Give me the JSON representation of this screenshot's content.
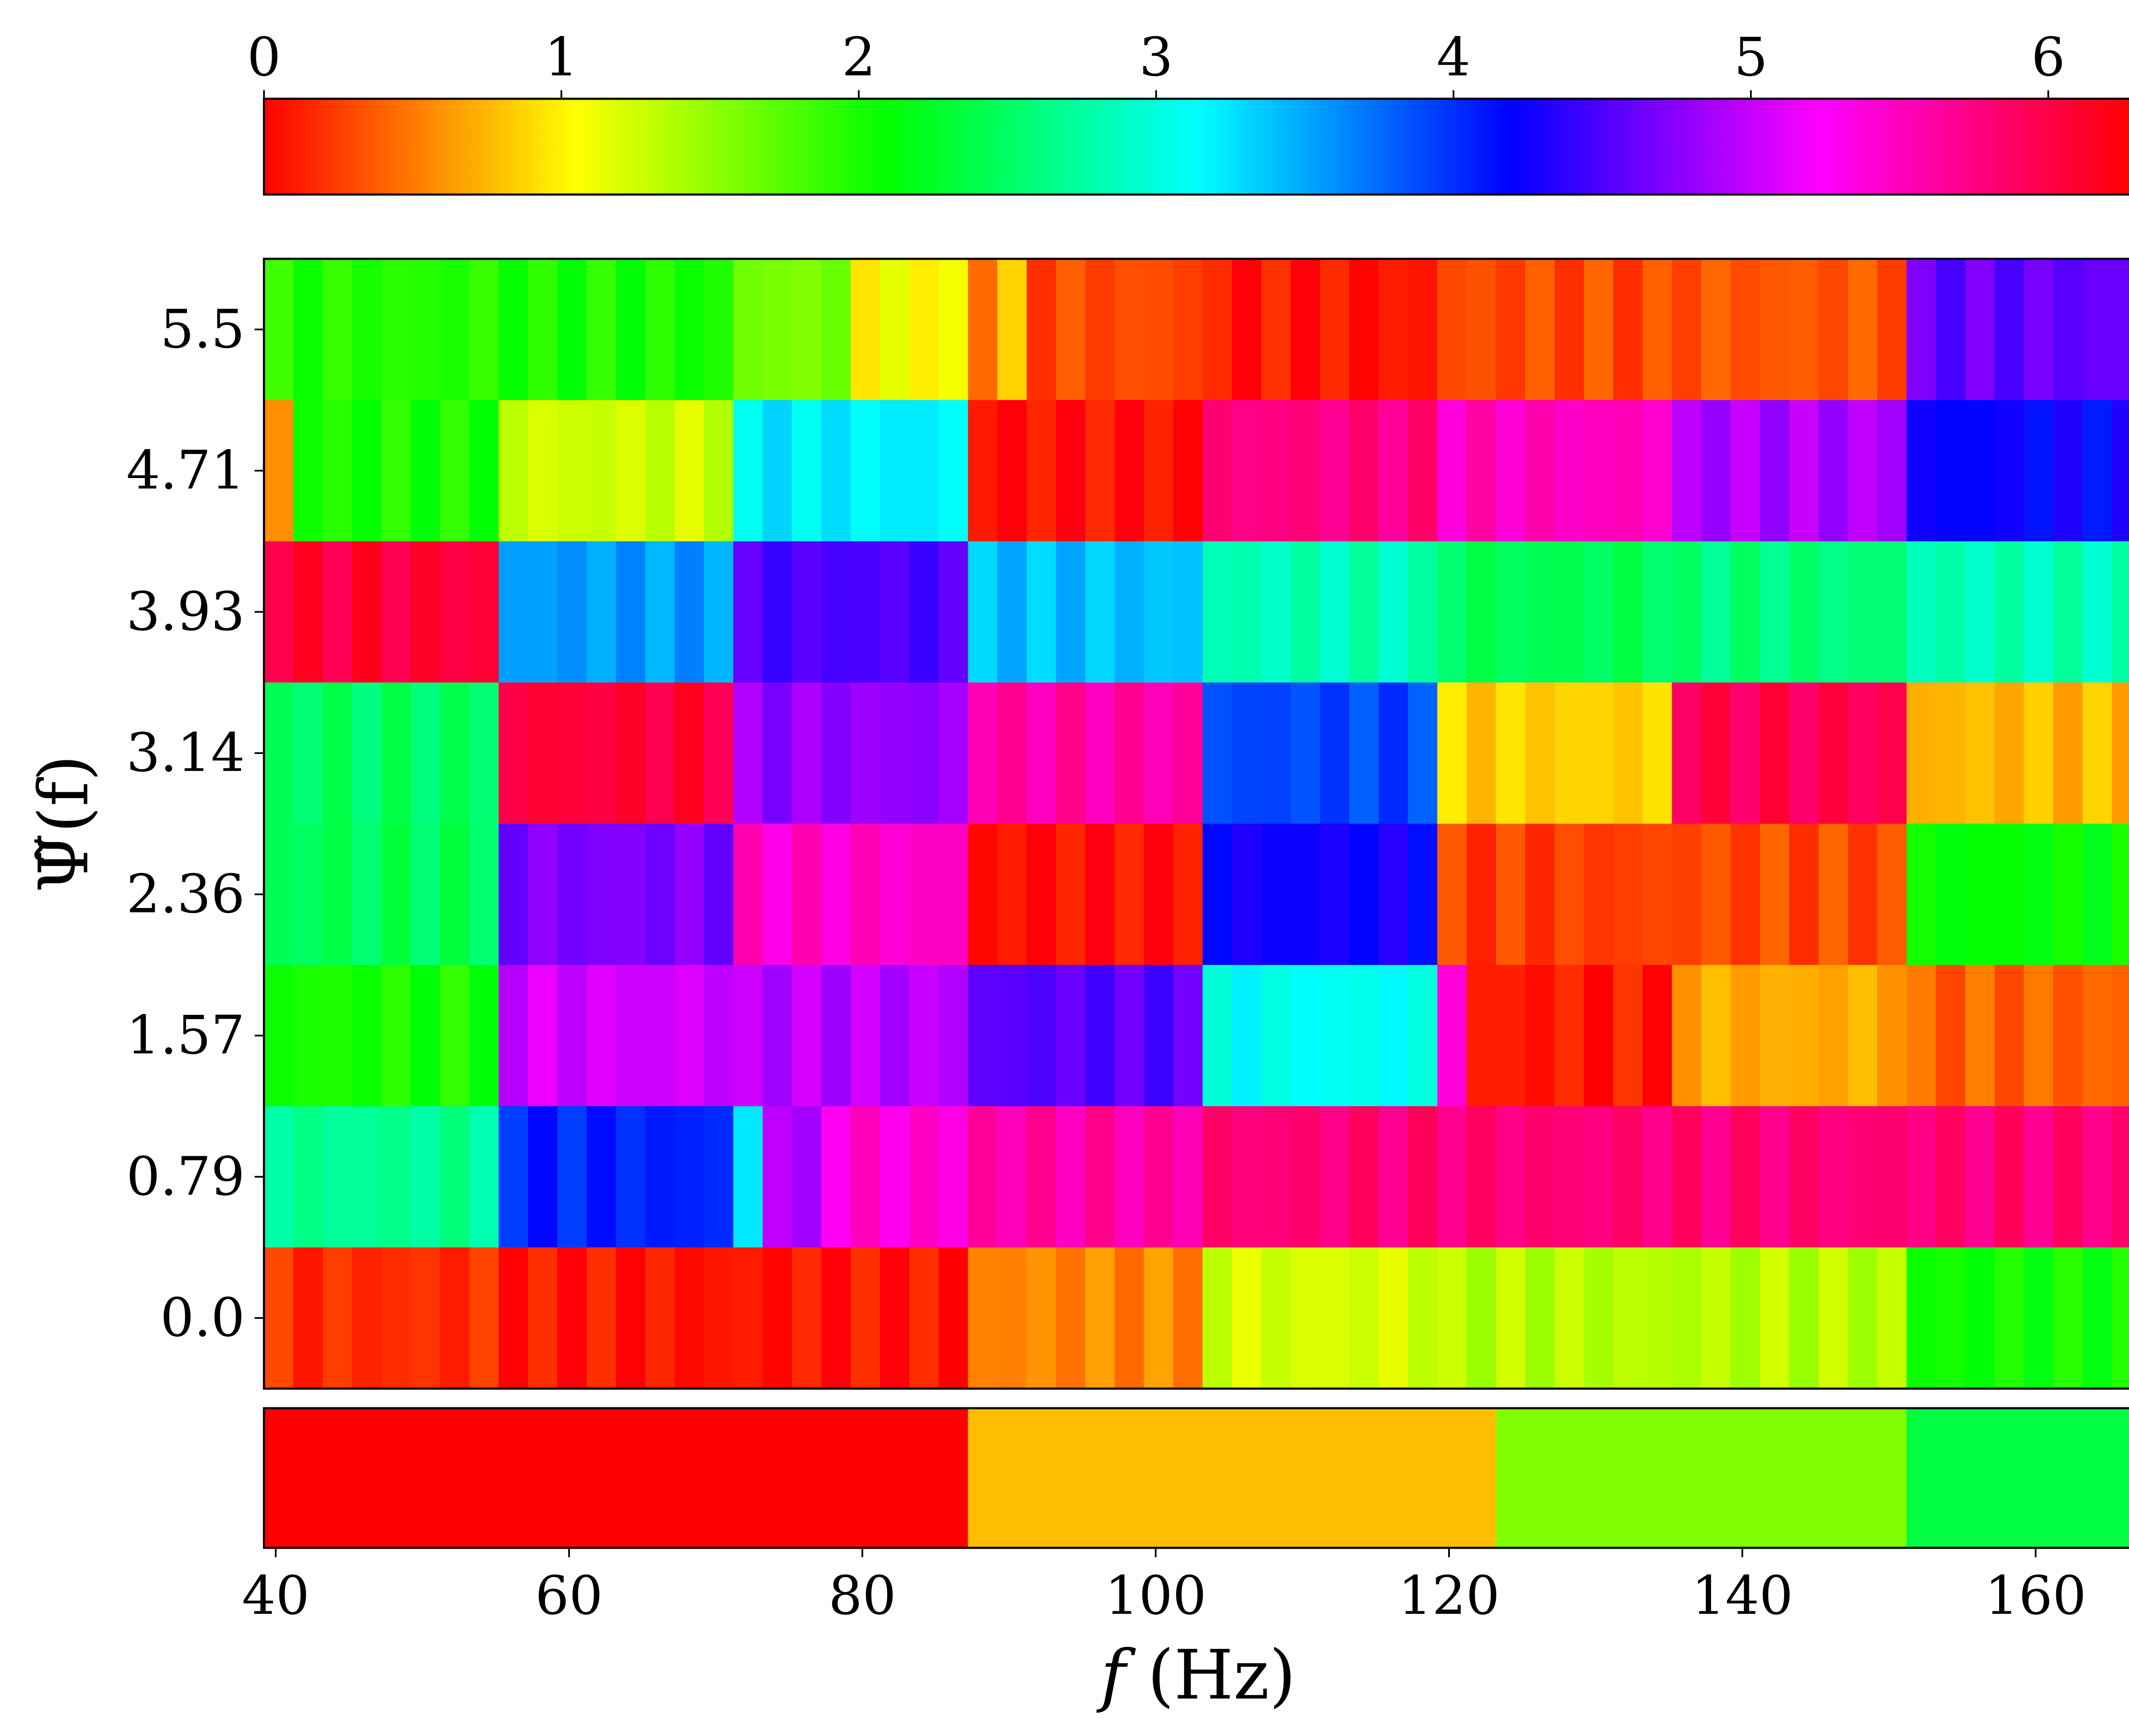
{
  "chart_data": {
    "type": "heatmap",
    "colormap": "hsv",
    "colorbar": {
      "range": [
        0,
        6.283
      ],
      "ticks": [
        "0",
        "1",
        "2",
        "3",
        "4",
        "5",
        "6"
      ],
      "tick_values": [
        0,
        1,
        2,
        3,
        4,
        5,
        6
      ],
      "position": "top"
    },
    "heatmap": {
      "xlim": [
        39.2,
        166.6
      ],
      "x_start": 39.2,
      "x_step": 2,
      "x_ticks": [
        40,
        60,
        80,
        100,
        120,
        140,
        160
      ],
      "x_tick_labels": [
        "40",
        "60",
        "80",
        "100",
        "120",
        "140",
        "160"
      ],
      "xlabel_italic": "f",
      "xlabel_rest": " (Hz)",
      "ylabel": "Ψ̃(f)",
      "y_tick_labels": [
        "0.0",
        "0.79",
        "1.57",
        "2.36",
        "3.14",
        "3.93",
        "4.71",
        "5.5"
      ],
      "y_values": [
        0.0,
        0.79,
        1.57,
        2.36,
        3.14,
        3.93,
        4.71,
        5.5
      ],
      "row_segments": [
        {
          "y": 5.5,
          "segments": [
            {
              "from": 39.2,
              "to": 55.2,
              "phase": 1.95
            },
            {
              "from": 55.2,
              "to": 71.2,
              "phase": 2.0
            },
            {
              "from": 71.2,
              "to": 79.2,
              "phase": 1.6
            },
            {
              "from": 79.2,
              "to": 87.2,
              "phase": 1.05
            },
            {
              "from": 87.2,
              "to": 89.2,
              "phase": 0.35
            },
            {
              "from": 89.2,
              "to": 91.2,
              "phase": 0.85
            },
            {
              "from": 91.2,
              "to": 103.2,
              "phase": 0.3
            },
            {
              "from": 103.2,
              "to": 119.2,
              "phase": 0.08
            },
            {
              "from": 119.2,
              "to": 135.2,
              "phase": 0.3
            },
            {
              "from": 135.2,
              "to": 151.2,
              "phase": 0.35
            },
            {
              "from": 151.2,
              "to": 166.6,
              "phase": 4.6
            }
          ]
        },
        {
          "y": 4.71,
          "segments": [
            {
              "from": 39.2,
              "to": 41.2,
              "phase": 0.7
            },
            {
              "from": 41.2,
              "to": 55.2,
              "phase": 2.0
            },
            {
              "from": 55.2,
              "to": 71.2,
              "phase": 1.25
            },
            {
              "from": 71.2,
              "to": 87.2,
              "phase": 3.2
            },
            {
              "from": 87.2,
              "to": 103.2,
              "phase": 0.05
            },
            {
              "from": 103.2,
              "to": 119.2,
              "phase": 5.75
            },
            {
              "from": 119.2,
              "to": 135.2,
              "phase": 5.5
            },
            {
              "from": 135.2,
              "to": 151.2,
              "phase": 4.9
            },
            {
              "from": 151.2,
              "to": 166.6,
              "phase": 4.2
            }
          ]
        },
        {
          "y": 3.93,
          "segments": [
            {
              "from": 39.2,
              "to": 55.2,
              "phase": 6.05
            },
            {
              "from": 55.2,
              "to": 71.2,
              "phase": 3.55
            },
            {
              "from": 71.2,
              "to": 87.2,
              "phase": 4.5
            },
            {
              "from": 87.2,
              "to": 103.2,
              "phase": 3.4
            },
            {
              "from": 103.2,
              "to": 119.2,
              "phase": 2.85
            },
            {
              "from": 119.2,
              "to": 135.2,
              "phase": 2.45
            },
            {
              "from": 135.2,
              "to": 151.2,
              "phase": 2.6
            },
            {
              "from": 151.2,
              "to": 166.6,
              "phase": 2.85
            }
          ]
        },
        {
          "y": 3.14,
          "segments": [
            {
              "from": 39.2,
              "to": 55.2,
              "phase": 2.5
            },
            {
              "from": 55.2,
              "to": 71.2,
              "phase": 6.05
            },
            {
              "from": 71.2,
              "to": 87.2,
              "phase": 4.8
            },
            {
              "from": 87.2,
              "to": 103.2,
              "phase": 5.6
            },
            {
              "from": 103.2,
              "to": 119.2,
              "phase": 3.9
            },
            {
              "from": 119.2,
              "to": 135.2,
              "phase": 0.85
            },
            {
              "from": 135.2,
              "to": 151.2,
              "phase": 5.95
            },
            {
              "from": 151.2,
              "to": 166.6,
              "phase": 0.75
            }
          ]
        },
        {
          "y": 2.36,
          "segments": [
            {
              "from": 39.2,
              "to": 55.2,
              "phase": 2.45
            },
            {
              "from": 55.2,
              "to": 71.2,
              "phase": 4.7
            },
            {
              "from": 71.2,
              "to": 87.2,
              "phase": 5.45
            },
            {
              "from": 87.2,
              "to": 103.2,
              "phase": 0.05
            },
            {
              "from": 103.2,
              "to": 119.2,
              "phase": 4.25
            },
            {
              "from": 119.2,
              "to": 135.2,
              "phase": 0.25
            },
            {
              "from": 135.2,
              "to": 151.2,
              "phase": 0.3
            },
            {
              "from": 151.2,
              "to": 166.6,
              "phase": 2.1
            }
          ]
        },
        {
          "y": 1.57,
          "segments": [
            {
              "from": 39.2,
              "to": 55.2,
              "phase": 2.0
            },
            {
              "from": 55.2,
              "to": 71.2,
              "phase": 5.05
            },
            {
              "from": 71.2,
              "to": 87.2,
              "phase": 4.95
            },
            {
              "from": 87.2,
              "to": 103.2,
              "phase": 4.55
            },
            {
              "from": 103.2,
              "to": 119.2,
              "phase": 3.1
            },
            {
              "from": 119.2,
              "to": 121.2,
              "phase": 5.3
            },
            {
              "from": 121.2,
              "to": 135.2,
              "phase": 0.1
            },
            {
              "from": 135.2,
              "to": 151.2,
              "phase": 0.7
            },
            {
              "from": 151.2,
              "to": 166.6,
              "phase": 0.4
            }
          ]
        },
        {
          "y": 0.79,
          "segments": [
            {
              "from": 39.2,
              "to": 55.2,
              "phase": 2.7
            },
            {
              "from": 55.2,
              "to": 71.2,
              "phase": 4.05
            },
            {
              "from": 71.2,
              "to": 73.2,
              "phase": 3.2
            },
            {
              "from": 73.2,
              "to": 77.2,
              "phase": 4.9
            },
            {
              "from": 77.2,
              "to": 87.2,
              "phase": 5.4
            },
            {
              "from": 87.2,
              "to": 103.2,
              "phase": 5.6
            },
            {
              "from": 103.2,
              "to": 166.6,
              "phase": 5.8
            }
          ]
        },
        {
          "y": 0.0,
          "segments": [
            {
              "from": 39.2,
              "to": 55.2,
              "phase": 0.18
            },
            {
              "from": 55.2,
              "to": 87.2,
              "phase": 0.08
            },
            {
              "from": 87.2,
              "to": 103.2,
              "phase": 0.55
            },
            {
              "from": 103.2,
              "to": 119.2,
              "phase": 1.22
            },
            {
              "from": 119.2,
              "to": 151.2,
              "phase": 1.35
            },
            {
              "from": 151.2,
              "to": 166.6,
              "phase": 2.05
            }
          ]
        }
      ]
    },
    "band_strip": {
      "segments": [
        {
          "from": 39.2,
          "to": 87.2,
          "color": "#ff0000"
        },
        {
          "from": 87.2,
          "to": 123.2,
          "color": "#ffbf00"
        },
        {
          "from": 123.2,
          "to": 151.2,
          "color": "#80ff00"
        },
        {
          "from": 151.2,
          "to": 166.6,
          "color": "#00ff40"
        }
      ]
    }
  }
}
